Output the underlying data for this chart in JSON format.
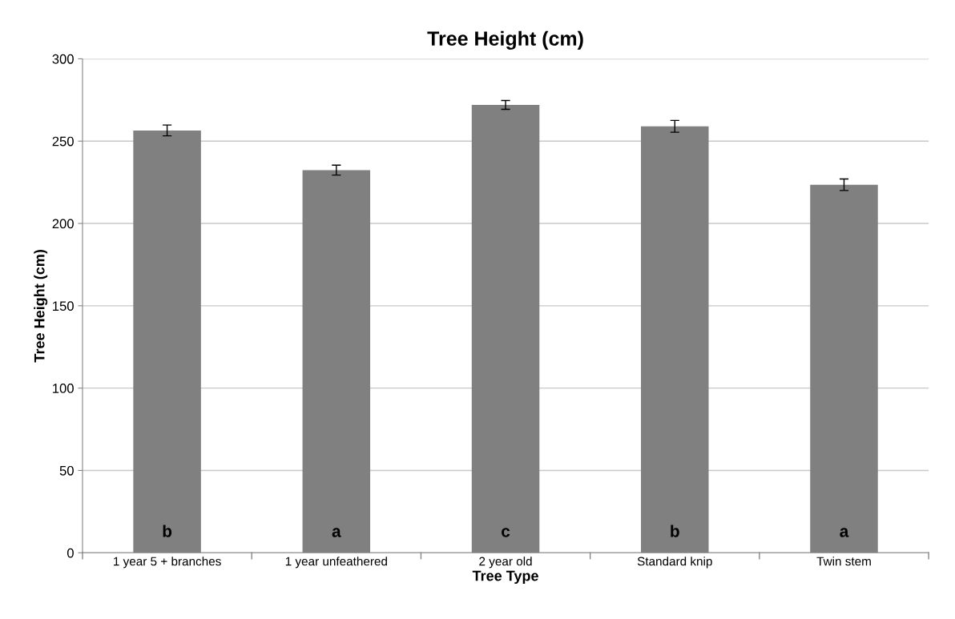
{
  "chart_data": {
    "type": "bar",
    "title": "Tree Height (cm)",
    "xlabel": "Tree Type",
    "ylabel": "Tree Height (cm)",
    "categories": [
      "1 year 5 + branches",
      "1 year unfeathered",
      "2 year old",
      "Standard knip",
      "Twin stem"
    ],
    "values": [
      256.5,
      232.4,
      272,
      259,
      223.5
    ],
    "errors": [
      3.3,
      3,
      2.7,
      3.6,
      3.5
    ],
    "color": "#808080",
    "ylim": [
      0,
      300
    ],
    "yticks": [
      0,
      50,
      100,
      150,
      200,
      250,
      300
    ],
    "grid": "y",
    "annotations": [
      "b",
      "a",
      "c",
      "b",
      "a"
    ]
  }
}
